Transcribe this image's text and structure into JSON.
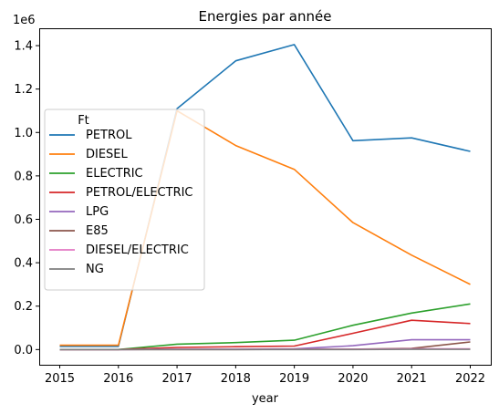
{
  "chart_data": {
    "type": "line",
    "title": "Energies par année",
    "xlabel": "year",
    "ylabel": "",
    "y_scale_label": "1e6",
    "x": [
      2015,
      2016,
      2017,
      2018,
      2019,
      2020,
      2021,
      2022
    ],
    "x_ticks": [
      "2015",
      "2016",
      "2017",
      "2018",
      "2019",
      "2020",
      "2021",
      "2022"
    ],
    "xlim": [
      2014.65,
      2022.35
    ],
    "ylim": [
      -0.07,
      1.48
    ],
    "y_ticks": [
      "0.0",
      "0.2",
      "0.4",
      "0.6",
      "0.8",
      "1.0",
      "1.2",
      "1.4"
    ],
    "y_tick_values": [
      0.0,
      0.2,
      0.4,
      0.6,
      0.8,
      1.0,
      1.2,
      1.4
    ],
    "grid": false,
    "legend": {
      "title": "Ft",
      "placement": "center-left"
    },
    "series": [
      {
        "name": "PETROL",
        "color": "#1f77b4",
        "values": [
          0.015,
          0.015,
          1.11,
          1.33,
          1.405,
          0.962,
          0.975,
          0.913
        ]
      },
      {
        "name": "DIESEL",
        "color": "#ff7f0e",
        "values": [
          0.02,
          0.02,
          1.1,
          0.94,
          0.83,
          0.585,
          0.435,
          0.3
        ]
      },
      {
        "name": "ELECTRIC",
        "color": "#2ca02c",
        "values": [
          0.0,
          0.0,
          0.025,
          0.032,
          0.043,
          0.112,
          0.168,
          0.21
        ]
      },
      {
        "name": "PETROL/ELECTRIC",
        "color": "#d62728",
        "values": [
          0.0,
          0.0,
          0.01,
          0.013,
          0.016,
          0.075,
          0.135,
          0.12
        ]
      },
      {
        "name": "LPG",
        "color": "#9467bd",
        "values": [
          0.0,
          0.0,
          0.001,
          0.002,
          0.003,
          0.018,
          0.045,
          0.045
        ]
      },
      {
        "name": "E85",
        "color": "#8c564b",
        "values": [
          0.0,
          0.0,
          0.0,
          0.0,
          0.001,
          0.002,
          0.005,
          0.035
        ]
      },
      {
        "name": "DIESEL/ELECTRIC",
        "color": "#e377c2",
        "values": [
          0.0,
          0.0,
          0.001,
          0.001,
          0.001,
          0.002,
          0.003,
          0.003
        ]
      },
      {
        "name": "NG",
        "color": "#7f7f7f",
        "values": [
          0.0,
          0.0,
          0.0,
          0.0,
          0.0,
          0.0,
          0.001,
          0.001
        ]
      }
    ]
  }
}
